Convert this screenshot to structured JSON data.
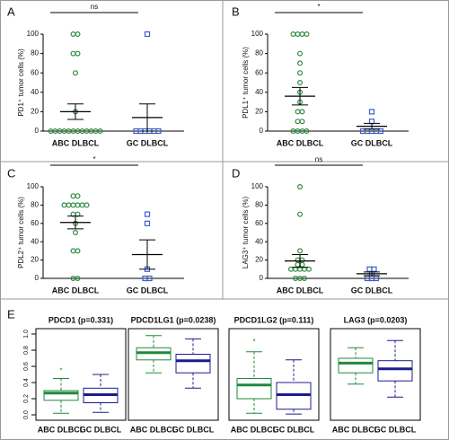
{
  "chart_data": [
    {
      "type": "dotplot",
      "panel": "A",
      "y_label": "PD1⁺ tumor cells (%)",
      "annotation": "ns",
      "ylim": [
        0,
        100
      ],
      "yticks": [
        0,
        20,
        40,
        60,
        80,
        100
      ],
      "series": [
        {
          "name": "ABC DLBCL",
          "color": "#2e8b3e",
          "marker": "circle",
          "values": [
            100,
            100,
            80,
            80,
            60,
            20,
            0,
            0,
            0,
            0,
            0,
            0,
            0,
            0,
            0,
            0,
            0,
            0
          ],
          "mean": 20,
          "sem": 8
        },
        {
          "name": "GC DLBCL",
          "color": "#3a5fcd",
          "marker": "square",
          "values": [
            100,
            0,
            0,
            0,
            0,
            0,
            0
          ],
          "mean": 14,
          "sem": 14
        }
      ]
    },
    {
      "type": "dotplot",
      "panel": "B",
      "y_label": "PDL1⁺ tumor cells (%)",
      "annotation": "*",
      "ylim": [
        0,
        100
      ],
      "yticks": [
        0,
        20,
        40,
        60,
        80,
        100
      ],
      "series": [
        {
          "name": "ABC DLBCL",
          "color": "#2e8b3e",
          "marker": "circle",
          "values": [
            100,
            100,
            100,
            100,
            80,
            70,
            60,
            50,
            40,
            30,
            20,
            20,
            10,
            10,
            0,
            0,
            0,
            0
          ],
          "mean": 36,
          "sem": 9
        },
        {
          "name": "GC DLBCL",
          "color": "#3a5fcd",
          "marker": "square",
          "values": [
            20,
            10,
            0,
            0,
            0,
            0,
            0
          ],
          "mean": 5,
          "sem": 3
        }
      ]
    },
    {
      "type": "dotplot",
      "panel": "C",
      "y_label": "PDL2⁺ tumor cells (%)",
      "annotation": "*",
      "ylim": [
        0,
        100
      ],
      "yticks": [
        0,
        20,
        40,
        60,
        80,
        100
      ],
      "series": [
        {
          "name": "ABC DLBCL",
          "color": "#2e8b3e",
          "marker": "circle",
          "values": [
            90,
            90,
            80,
            80,
            80,
            80,
            80,
            80,
            70,
            70,
            60,
            50,
            30,
            30,
            0,
            0
          ],
          "mean": 61,
          "sem": 7
        },
        {
          "name": "GC DLBCL",
          "color": "#3a5fcd",
          "marker": "square",
          "values": [
            70,
            60,
            10,
            0,
            0
          ],
          "mean": 26,
          "sem": 16
        }
      ]
    },
    {
      "type": "dotplot",
      "panel": "D",
      "y_label": "LAG3⁺ tumor cells (%)",
      "annotation": "ns",
      "ylim": [
        0,
        100
      ],
      "yticks": [
        0,
        20,
        40,
        60,
        80,
        100
      ],
      "series": [
        {
          "name": "ABC DLBCL",
          "color": "#2e8b3e",
          "marker": "circle",
          "values": [
            100,
            70,
            30,
            20,
            20,
            15,
            15,
            10,
            10,
            10,
            10,
            10,
            0,
            0,
            0
          ],
          "mean": 19,
          "sem": 7
        },
        {
          "name": "GC DLBCL",
          "color": "#3a5fcd",
          "marker": "square",
          "values": [
            10,
            10,
            5,
            0,
            0,
            0
          ],
          "mean": 5,
          "sem": 2
        }
      ]
    },
    {
      "type": "box",
      "panel": "E",
      "ylim": [
        0,
        1
      ],
      "yticks": [
        {
          "value": 0,
          "label": "0.0"
        },
        0.2,
        0.4,
        0.6,
        0.8,
        {
          "value": 1,
          "label": "1.0"
        }
      ],
      "plots": [
        {
          "title": "PDCD1 (p=0.331)",
          "series": [
            {
              "name": "ABC DLBCL",
              "color": "#1f8a3a",
              "whisker_low": 0.02,
              "q1": 0.18,
              "median": 0.27,
              "q3": 0.3,
              "whisker_high": 0.45,
              "outliers": [
                0.55
              ]
            },
            {
              "name": "GC DLBCL",
              "color": "#1c1c8c",
              "whisker_low": 0.03,
              "q1": 0.15,
              "median": 0.25,
              "q3": 0.33,
              "whisker_high": 0.5,
              "outliers": []
            }
          ]
        },
        {
          "title": "PDCD1LG1 (p=0.0238)",
          "series": [
            {
              "name": "ABC DLBCL",
              "color": "#1f8a3a",
              "whisker_low": 0.52,
              "q1": 0.68,
              "median": 0.77,
              "q3": 0.83,
              "whisker_high": 0.98,
              "outliers": []
            },
            {
              "name": "GC DLBCL",
              "color": "#1c1c8c",
              "whisker_low": 0.33,
              "q1": 0.52,
              "median": 0.67,
              "q3": 0.75,
              "whisker_high": 0.94,
              "outliers": []
            }
          ]
        },
        {
          "title": "PDCD1LG2 (p=0.111)",
          "series": [
            {
              "name": "ABC DLBCL",
              "color": "#1f8a3a",
              "whisker_low": 0.02,
              "q1": 0.2,
              "median": 0.37,
              "q3": 0.45,
              "whisker_high": 0.78,
              "outliers": [
                0.91
              ]
            },
            {
              "name": "GC DLBCL",
              "color": "#1c1c8c",
              "whisker_low": 0.01,
              "q1": 0.07,
              "median": 0.25,
              "q3": 0.4,
              "whisker_high": 0.68,
              "outliers": []
            }
          ]
        },
        {
          "title": "LAG3 (p=0.0203)",
          "series": [
            {
              "name": "ABC DLBCL",
              "color": "#1f8a3a",
              "whisker_low": 0.38,
              "q1": 0.52,
              "median": 0.64,
              "q3": 0.7,
              "whisker_high": 0.83,
              "outliers": []
            },
            {
              "name": "GC DLBCL",
              "color": "#1c1c8c",
              "whisker_low": 0.22,
              "q1": 0.42,
              "median": 0.57,
              "q3": 0.67,
              "whisker_high": 0.92,
              "outliers": []
            }
          ]
        }
      ]
    }
  ]
}
